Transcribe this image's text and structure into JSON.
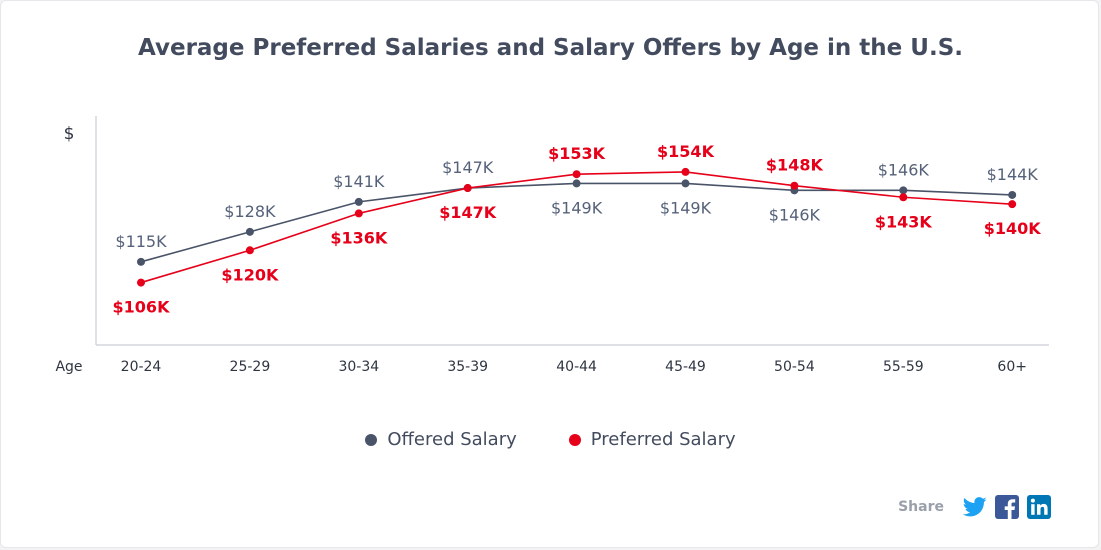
{
  "chart_data": {
    "type": "line",
    "title": "Average Preferred Salaries and Salary Offers by Age in the U.S.",
    "xlabel": "Age",
    "ylabel": "$",
    "categories": [
      "20-24",
      "25-29",
      "30-34",
      "35-39",
      "40-44",
      "45-49",
      "50-54",
      "55-59",
      "60+"
    ],
    "ylim": [
      85,
      170
    ],
    "grid": false,
    "legend_position": "bottom-center",
    "series": [
      {
        "name": "Offered Salary",
        "color": "#4a5468",
        "values": [
          115,
          128,
          141,
          147,
          149,
          149,
          146,
          146,
          144
        ],
        "labels": [
          "$115K",
          "$128K",
          "$141K",
          "$147K",
          "$149K",
          "$149K",
          "$146K",
          "$146K",
          "$144K"
        ]
      },
      {
        "name": "Preferred Salary",
        "color": "#e60019",
        "values": [
          106,
          120,
          136,
          147,
          153,
          154,
          148,
          143,
          140
        ],
        "labels": [
          "$106K",
          "$120K",
          "$136K",
          "$147K",
          "$153K",
          "$154K",
          "$148K",
          "$143K",
          "$140K"
        ]
      }
    ]
  },
  "share": {
    "label": "Share",
    "buttons": [
      "twitter-icon",
      "facebook-icon",
      "linkedin-icon"
    ]
  },
  "colors": {
    "axis": "#c9ced8",
    "twitter": "#1da1f2",
    "facebook": "#3b5998",
    "linkedin": "#0077b5"
  }
}
